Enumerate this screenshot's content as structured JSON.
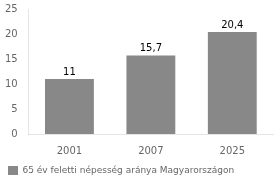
{
  "chart_data": {
    "type": "bar",
    "categories": [
      "2001",
      "2007",
      "2025"
    ],
    "series": [
      {
        "name": "65 év feletti népesség aránya Magyarországon",
        "color": "#888888",
        "values": [
          11,
          15.7,
          20.4
        ],
        "value_labels": [
          "11",
          "15,7",
          "20,4"
        ]
      }
    ],
    "ylim": [
      0,
      25
    ],
    "yticks": [
      0,
      5,
      10,
      15,
      20,
      25
    ],
    "grid": false,
    "legend": "lower left",
    "data_labels": true
  }
}
